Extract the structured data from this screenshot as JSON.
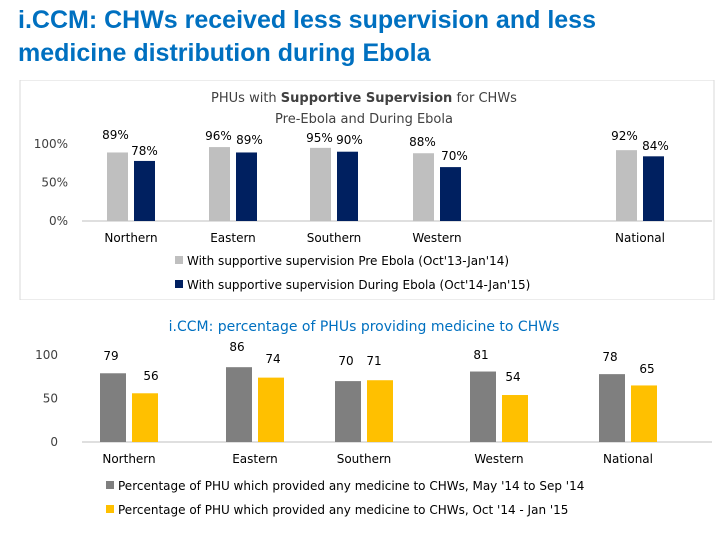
{
  "slide": {
    "title_line1": "i.CCM: CHWs received less supervision and less",
    "title_line2": "medicine distribution during Ebola",
    "title_color": "#0070c0"
  },
  "chart_data": [
    {
      "type": "bar",
      "title_parts": [
        {
          "text": "PHUs with ",
          "bold": false
        },
        {
          "text": "Supportive Supervision",
          "bold": true
        },
        {
          "text": " for CHWs",
          "bold": false
        }
      ],
      "subtitle": "Pre-Ebola  and During Ebola",
      "categories": [
        "Northern",
        "Eastern",
        "Southern",
        "Western",
        "National"
      ],
      "series": [
        {
          "name": "With supportive supervision Pre Ebola (Oct'13-Jan'14)",
          "values": [
            89,
            96,
            95,
            88,
            92
          ],
          "labels": [
            "89%",
            "96%",
            "95%",
            "88%",
            "92%"
          ],
          "color": "#bfbfbf"
        },
        {
          "name": "With supportive supervision During Ebola (Oct'14-Jan'15)",
          "values": [
            78,
            89,
            90,
            70,
            84
          ],
          "labels": [
            "78%",
            "89%",
            "90%",
            "70%",
            "84%"
          ],
          "color": "#002060"
        }
      ],
      "ylim": [
        0,
        100
      ],
      "ytick_values": [
        0,
        50,
        100
      ],
      "ytick_labels": [
        "0%",
        "50%",
        "100%"
      ],
      "grid": false,
      "legend_position": "bottom"
    },
    {
      "type": "bar",
      "title_parts": [
        {
          "text": "i.CCM",
          "bold": false
        },
        {
          "text": ": percentage of PHUs providing medicine to CHWs",
          "bold": false
        }
      ],
      "categories": [
        "Northern",
        "Eastern",
        "Southern",
        "Western",
        "National"
      ],
      "series": [
        {
          "name": "Percentage of PHU which provided any medicine to CHWs, May '14 to Sep '14",
          "values": [
            79,
            86,
            70,
            81,
            78
          ],
          "labels": [
            "79",
            "86",
            "70",
            "81",
            "78"
          ],
          "color": "#7f7f7f"
        },
        {
          "name": "Percentage of PHU which provided any medicine to CHWs, Oct '14 - Jan '15",
          "values": [
            56,
            74,
            71,
            54,
            65
          ],
          "labels": [
            "56",
            "74",
            "71",
            "54",
            "65"
          ],
          "color": "#ffc000"
        }
      ],
      "ylim": [
        0,
        100
      ],
      "ytick_values": [
        0,
        50,
        100
      ],
      "ytick_labels": [
        "0",
        "50",
        "100"
      ],
      "grid": false,
      "legend_position": "bottom"
    }
  ]
}
